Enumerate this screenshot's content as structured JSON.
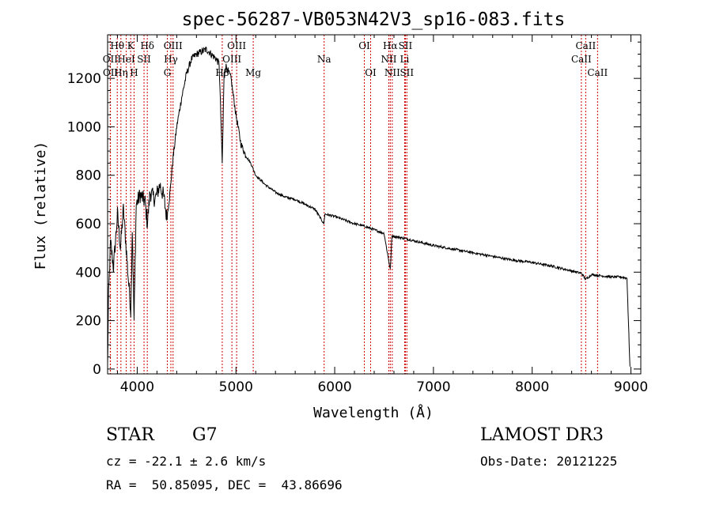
{
  "chart_data": {
    "type": "line",
    "title": "spec-56287-VB053N42V3_sp16-083.fits",
    "xlabel": "Wavelength (Å)",
    "ylabel": "Flux (relative)",
    "xlim": [
      3700,
      9100
    ],
    "ylim": [
      -20,
      1380
    ],
    "x_ticks": [
      4000,
      5000,
      6000,
      7000,
      8000,
      9000
    ],
    "y_ticks": [
      0,
      200,
      400,
      600,
      800,
      1000,
      1200
    ],
    "spectrum_anchors": [
      [
        3700,
        10
      ],
      [
        3710,
        300
      ],
      [
        3730,
        520
      ],
      [
        3760,
        420
      ],
      [
        3800,
        640
      ],
      [
        3830,
        500
      ],
      [
        3860,
        660
      ],
      [
        3900,
        430
      ],
      [
        3935,
        240
      ],
      [
        3950,
        580
      ],
      [
        3968,
        200
      ],
      [
        3990,
        680
      ],
      [
        4030,
        720
      ],
      [
        4080,
        690
      ],
      [
        4102,
        600
      ],
      [
        4130,
        730
      ],
      [
        4180,
        700
      ],
      [
        4230,
        760
      ],
      [
        4270,
        710
      ],
      [
        4300,
        620
      ],
      [
        4330,
        720
      ],
      [
        4360,
        860
      ],
      [
        4400,
        1000
      ],
      [
        4450,
        1120
      ],
      [
        4500,
        1220
      ],
      [
        4550,
        1280
      ],
      [
        4600,
        1300
      ],
      [
        4650,
        1310
      ],
      [
        4700,
        1320
      ],
      [
        4750,
        1300
      ],
      [
        4800,
        1280
      ],
      [
        4830,
        1260
      ],
      [
        4861,
        850
      ],
      [
        4880,
        1220
      ],
      [
        4900,
        1250
      ],
      [
        4950,
        1200
      ],
      [
        5000,
        1050
      ],
      [
        5050,
        930
      ],
      [
        5100,
        880
      ],
      [
        5150,
        850
      ],
      [
        5200,
        800
      ],
      [
        5300,
        760
      ],
      [
        5400,
        730
      ],
      [
        5500,
        710
      ],
      [
        5600,
        700
      ],
      [
        5700,
        680
      ],
      [
        5800,
        660
      ],
      [
        5890,
        600
      ],
      [
        5900,
        640
      ],
      [
        6000,
        630
      ],
      [
        6100,
        615
      ],
      [
        6200,
        600
      ],
      [
        6300,
        590
      ],
      [
        6400,
        575
      ],
      [
        6500,
        560
      ],
      [
        6563,
        410
      ],
      [
        6580,
        550
      ],
      [
        6700,
        540
      ],
      [
        6800,
        530
      ],
      [
        7000,
        510
      ],
      [
        7200,
        495
      ],
      [
        7400,
        480
      ],
      [
        7600,
        465
      ],
      [
        7800,
        450
      ],
      [
        8000,
        440
      ],
      [
        8200,
        425
      ],
      [
        8400,
        405
      ],
      [
        8500,
        395
      ],
      [
        8542,
        370
      ],
      [
        8600,
        390
      ],
      [
        8700,
        385
      ],
      [
        8800,
        380
      ],
      [
        8900,
        380
      ],
      [
        8960,
        375
      ],
      [
        8990,
        10
      ]
    ],
    "lines": [
      {
        "name": "Hθ",
        "wavelength": 3798,
        "row": 0
      },
      {
        "name": "OII",
        "wavelength": 3727,
        "row": 1
      },
      {
        "name": "OII",
        "wavelength": 3729,
        "row": 2
      },
      {
        "name": "K",
        "wavelength": 3934,
        "row": 0
      },
      {
        "name": "HeI",
        "wavelength": 3889,
        "row": 1
      },
      {
        "name": "Hη",
        "wavelength": 3835,
        "row": 2
      },
      {
        "name": "Hδ",
        "wavelength": 4102,
        "row": 0
      },
      {
        "name": "SII",
        "wavelength": 4069,
        "row": 1
      },
      {
        "name": "H",
        "wavelength": 3968,
        "row": 2
      },
      {
        "name": "OIII",
        "wavelength": 4363,
        "row": 0
      },
      {
        "name": "Hγ",
        "wavelength": 4341,
        "row": 1
      },
      {
        "name": "G",
        "wavelength": 4305,
        "row": 2
      },
      {
        "name": "OIII",
        "wavelength": 5007,
        "row": 0
      },
      {
        "name": "OIII",
        "wavelength": 4959,
        "row": 1
      },
      {
        "name": "Hβ",
        "wavelength": 4861,
        "row": 2
      },
      {
        "name": "Mg",
        "wavelength": 5175,
        "row": 2
      },
      {
        "name": "Na",
        "wavelength": 5893,
        "row": 1
      },
      {
        "name": "OI",
        "wavelength": 6300,
        "row": 0
      },
      {
        "name": "OI",
        "wavelength": 6364,
        "row": 2
      },
      {
        "name": "Hα",
        "wavelength": 6563,
        "row": 0
      },
      {
        "name": "NII",
        "wavelength": 6548,
        "row": 1
      },
      {
        "name": "NII",
        "wavelength": 6583,
        "row": 2
      },
      {
        "name": "SII",
        "wavelength": 6716,
        "row": 0
      },
      {
        "name": "Li",
        "wavelength": 6708,
        "row": 1
      },
      {
        "name": "SII",
        "wavelength": 6731,
        "row": 2
      },
      {
        "name": "CaII",
        "wavelength": 8542,
        "row": 0
      },
      {
        "name": "CaII",
        "wavelength": 8498,
        "row": 1
      },
      {
        "name": "CaII",
        "wavelength": 8662,
        "row": 2
      }
    ],
    "line_color": "#cc0000",
    "grid": false
  },
  "info": {
    "object_class": "STAR",
    "subclass": "G7",
    "survey": "LAMOST DR3",
    "cz": "cz = -22.1 ± 2.6 km/s",
    "obs_date": "Obs-Date: 20121225",
    "coords": "RA =  50.85095, DEC =  43.86696"
  }
}
